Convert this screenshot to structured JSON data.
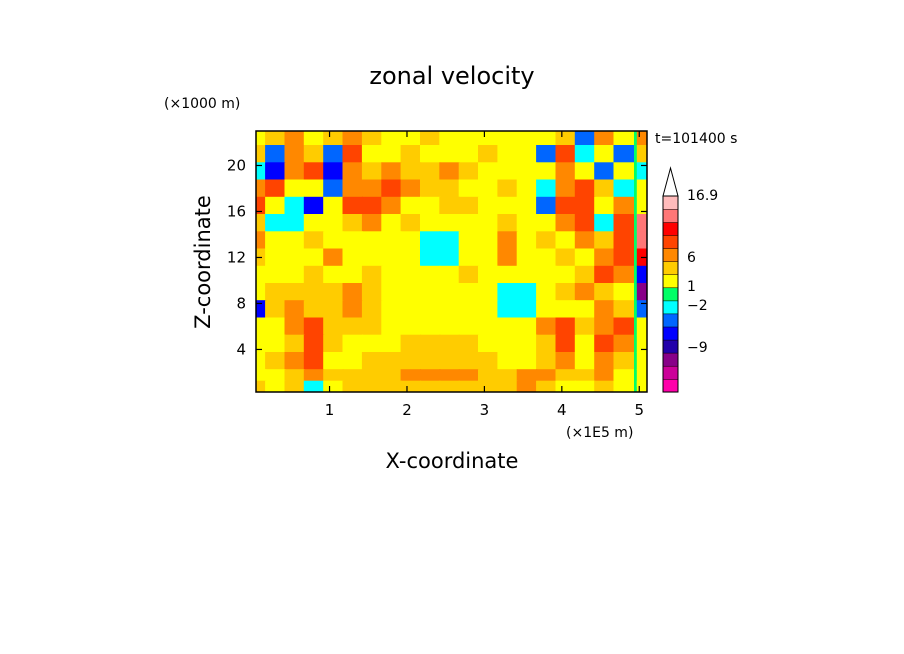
{
  "chart_data": {
    "type": "heatmap",
    "title": "zonal velocity",
    "time_label": "t=101400 s",
    "xlabel": "X-coordinate",
    "ylabel": "Z-coordinate",
    "x_unit": "(×1E5 m)",
    "y_unit": "(×1000 m)",
    "xlim": [
      0.05,
      5.1
    ],
    "ylim": [
      0.3,
      23
    ],
    "x_ticks": [
      "1",
      "2",
      "3",
      "4",
      "5"
    ],
    "y_ticks": [
      "4",
      "8",
      "12",
      "16",
      "20"
    ],
    "colorbar": {
      "labels": [
        "16.9",
        "6",
        "1",
        "-2",
        "-9"
      ],
      "label_values": [
        16.9,
        6,
        1,
        -2,
        -9
      ],
      "colors": [
        "#ff00aa",
        "#cc0099",
        "#880088",
        "#2200aa",
        "#0000ff",
        "#0066ff",
        "#00ffff",
        "#00ff66",
        "#ffff00",
        "#ffcc00",
        "#ff8800",
        "#ff4400",
        "#ff0000",
        "#ff7777",
        "#ffbbbb"
      ],
      "extend_top": true
    },
    "field": {
      "description_levels": "Contour-filled zonal velocity field; values estimated on a coarse grid (m/s).",
      "x": [
        0.05,
        0.3,
        0.55,
        0.8,
        1.05,
        1.3,
        1.55,
        1.8,
        2.05,
        2.3,
        2.55,
        2.8,
        3.05,
        3.3,
        3.55,
        3.8,
        4.05,
        4.3,
        4.55,
        4.8,
        5.1
      ],
      "z": [
        22.5,
        21,
        19.5,
        18,
        16.5,
        15,
        13.5,
        12,
        10.5,
        9,
        7.5,
        6,
        4.5,
        3,
        1.5,
        0.5
      ],
      "values": [
        [
          0,
          2,
          3,
          0,
          2,
          3,
          2,
          0,
          0,
          2,
          0,
          0,
          0,
          0,
          0,
          0,
          2,
          -3,
          3,
          0,
          3
        ],
        [
          2,
          -3,
          3,
          2,
          -3,
          4,
          0,
          0,
          2,
          0,
          0,
          0,
          2,
          0,
          0,
          -3,
          4,
          -2,
          0,
          -3,
          2
        ],
        [
          -2,
          -5,
          3,
          4,
          -5,
          3,
          2,
          3,
          2,
          2,
          3,
          2,
          0,
          0,
          0,
          0,
          3,
          0,
          -3,
          0,
          -2
        ],
        [
          3,
          4,
          0,
          0,
          -3,
          3,
          3,
          4,
          3,
          2,
          2,
          0,
          0,
          2,
          0,
          -2,
          3,
          4,
          2,
          -2,
          0
        ],
        [
          4,
          0,
          -2,
          -5,
          0,
          4,
          5,
          3,
          0,
          0,
          2,
          2,
          0,
          0,
          0,
          -3,
          4,
          5,
          0,
          3,
          0
        ],
        [
          2,
          -2,
          -2,
          0,
          0,
          2,
          3,
          0,
          2,
          0,
          0,
          0,
          0,
          2,
          0,
          0,
          3,
          4,
          -2,
          4,
          8
        ],
        [
          3,
          0,
          0,
          2,
          0,
          0,
          0,
          0,
          0,
          -2,
          -2,
          0,
          0,
          3,
          0,
          2,
          0,
          3,
          2,
          5,
          8
        ],
        [
          2,
          0,
          0,
          0,
          3,
          0,
          0,
          0,
          0,
          -2,
          -2,
          0,
          0,
          3,
          0,
          0,
          2,
          0,
          3,
          4,
          6
        ],
        [
          0,
          0,
          0,
          2,
          0,
          0,
          2,
          0,
          0,
          0,
          0,
          2,
          0,
          0,
          0,
          0,
          0,
          2,
          4,
          3,
          -5
        ],
        [
          0,
          2,
          2,
          2,
          2,
          3,
          2,
          0,
          0,
          0,
          0,
          0,
          0,
          -2,
          -2,
          0,
          2,
          3,
          2,
          0,
          -9
        ],
        [
          -6,
          2,
          3,
          2,
          2,
          3,
          2,
          0,
          0,
          0,
          0,
          0,
          0,
          -2,
          -2,
          0,
          0,
          0,
          3,
          2,
          -3
        ],
        [
          0,
          0,
          3,
          4,
          2,
          2,
          2,
          0,
          0,
          0,
          0,
          0,
          0,
          0,
          0,
          3,
          4,
          2,
          3,
          4,
          0
        ],
        [
          0,
          0,
          2,
          5,
          2,
          0,
          0,
          0,
          2,
          2,
          2,
          2,
          0,
          0,
          0,
          2,
          4,
          0,
          4,
          3,
          0
        ],
        [
          0,
          2,
          3,
          4,
          0,
          0,
          2,
          2,
          2,
          2,
          2,
          2,
          2,
          0,
          0,
          2,
          3,
          0,
          3,
          2,
          0
        ],
        [
          0,
          0,
          2,
          3,
          2,
          2,
          2,
          2,
          3,
          3,
          3,
          3,
          2,
          2,
          3,
          3,
          2,
          2,
          3,
          0,
          0
        ],
        [
          2,
          0,
          2,
          -2,
          0,
          2,
          2,
          2,
          2,
          2,
          2,
          2,
          2,
          2,
          3,
          2,
          0,
          0,
          2,
          0,
          0
        ]
      ]
    }
  }
}
